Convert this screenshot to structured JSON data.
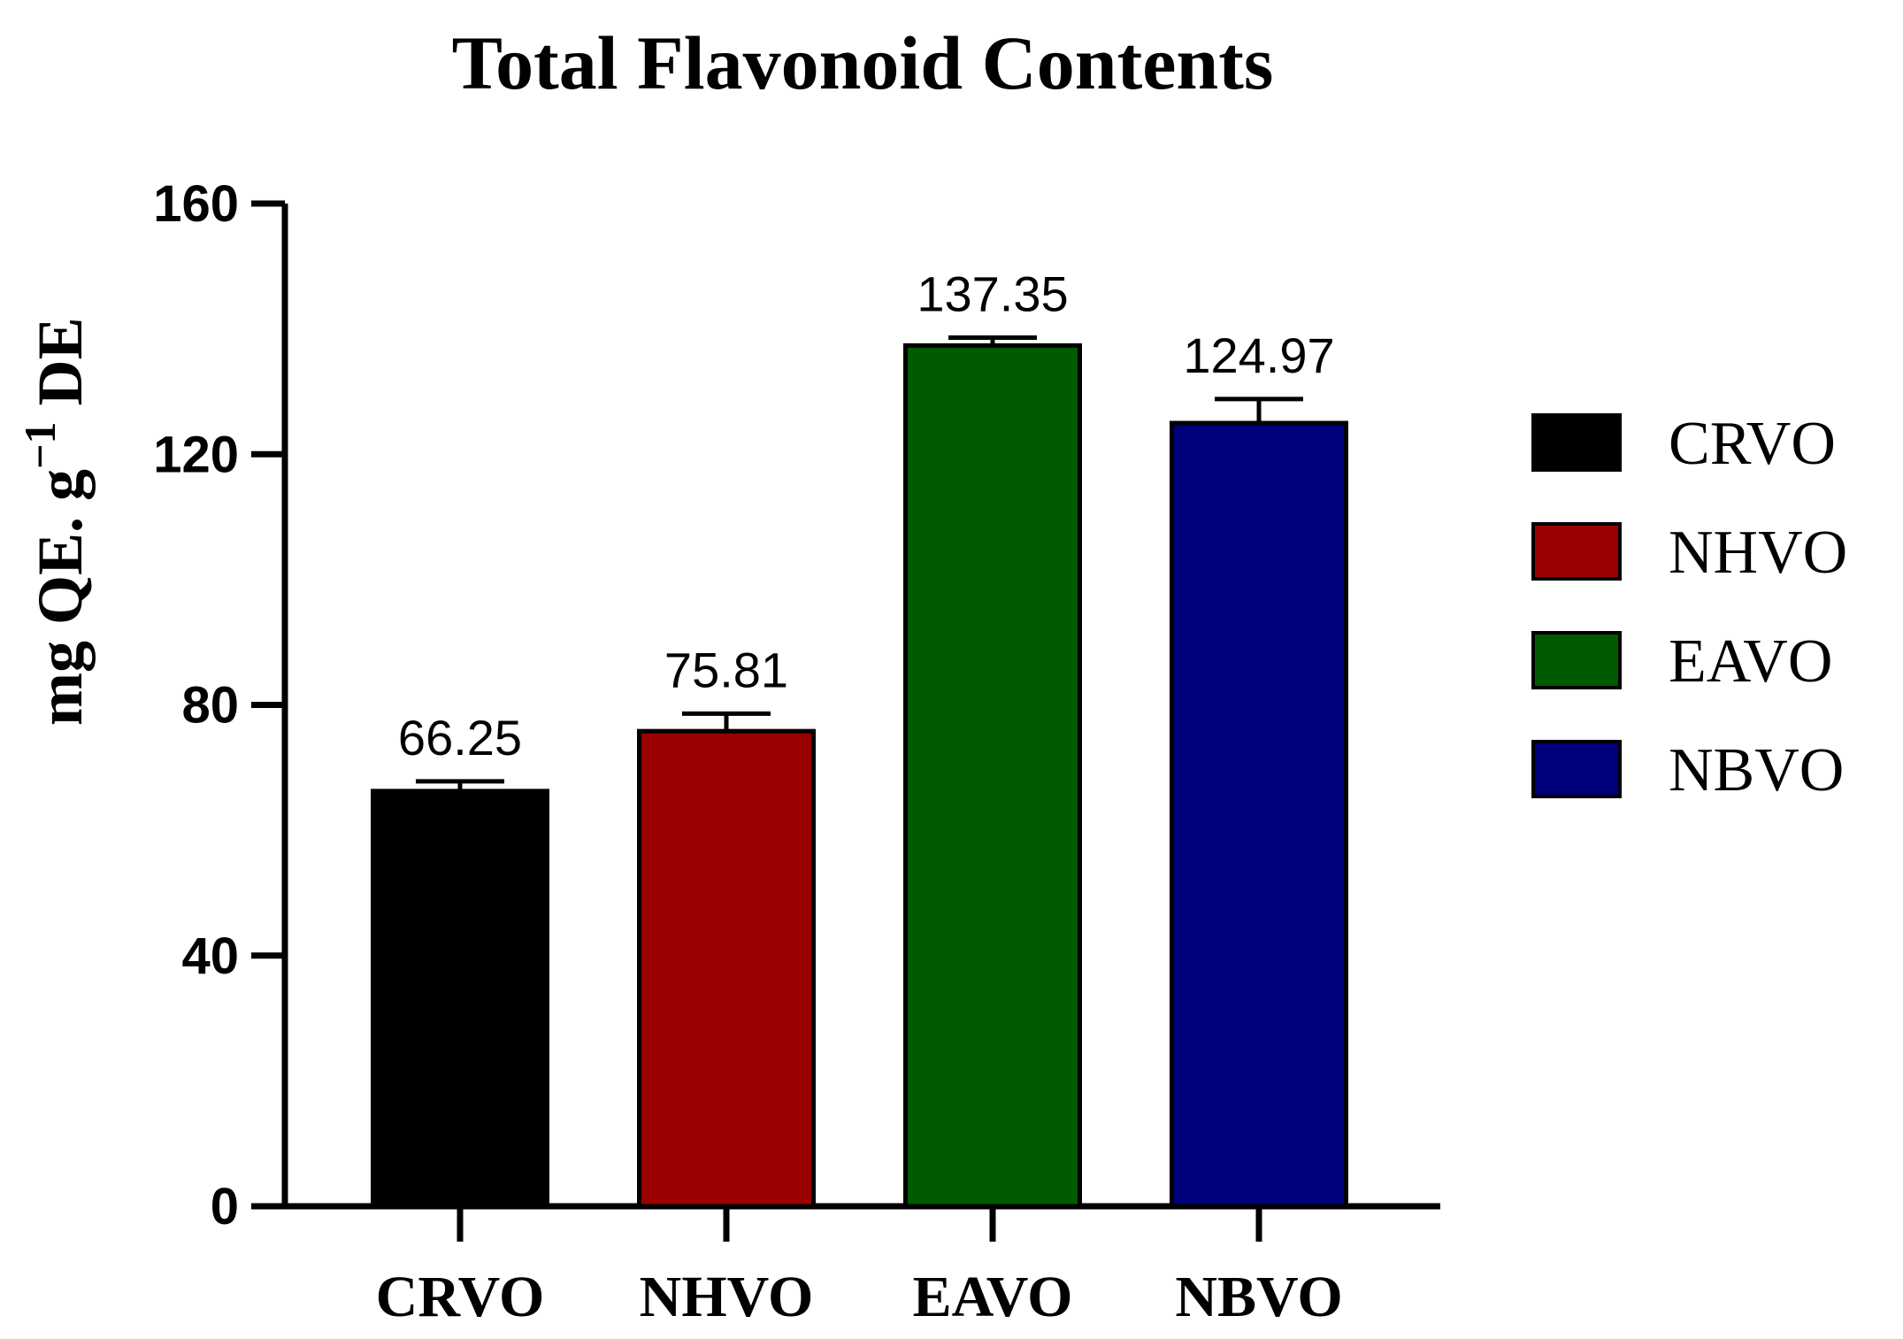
{
  "chart_data": {
    "type": "bar",
    "title": "Total Flavonoid Contents",
    "ylabel": "mg QE. g",
    "ylabel_superscript": "−1",
    "ylabel_suffix": " DE",
    "xlabel": "",
    "categories": [
      "CRVO",
      "NHVO",
      "EAVO",
      "NBVO"
    ],
    "values": [
      66.25,
      75.81,
      137.35,
      124.97
    ],
    "error_upper": [
      67.8,
      78.6,
      138.6,
      128.8
    ],
    "data_labels": [
      "66.25",
      "75.81",
      "137.35",
      "124.97"
    ],
    "colors": [
      "#000000",
      "#9b0000",
      "#005a00",
      "#00007a"
    ],
    "ylim": [
      0,
      160
    ],
    "yticks": [
      0,
      40,
      80,
      120,
      160
    ],
    "ytick_labels": [
      "0",
      "40",
      "80",
      "120",
      "160"
    ],
    "grid": false,
    "legend": {
      "position": "right",
      "entries": [
        "CRVO",
        "NHVO",
        "EAVO",
        "NBVO"
      ]
    }
  }
}
